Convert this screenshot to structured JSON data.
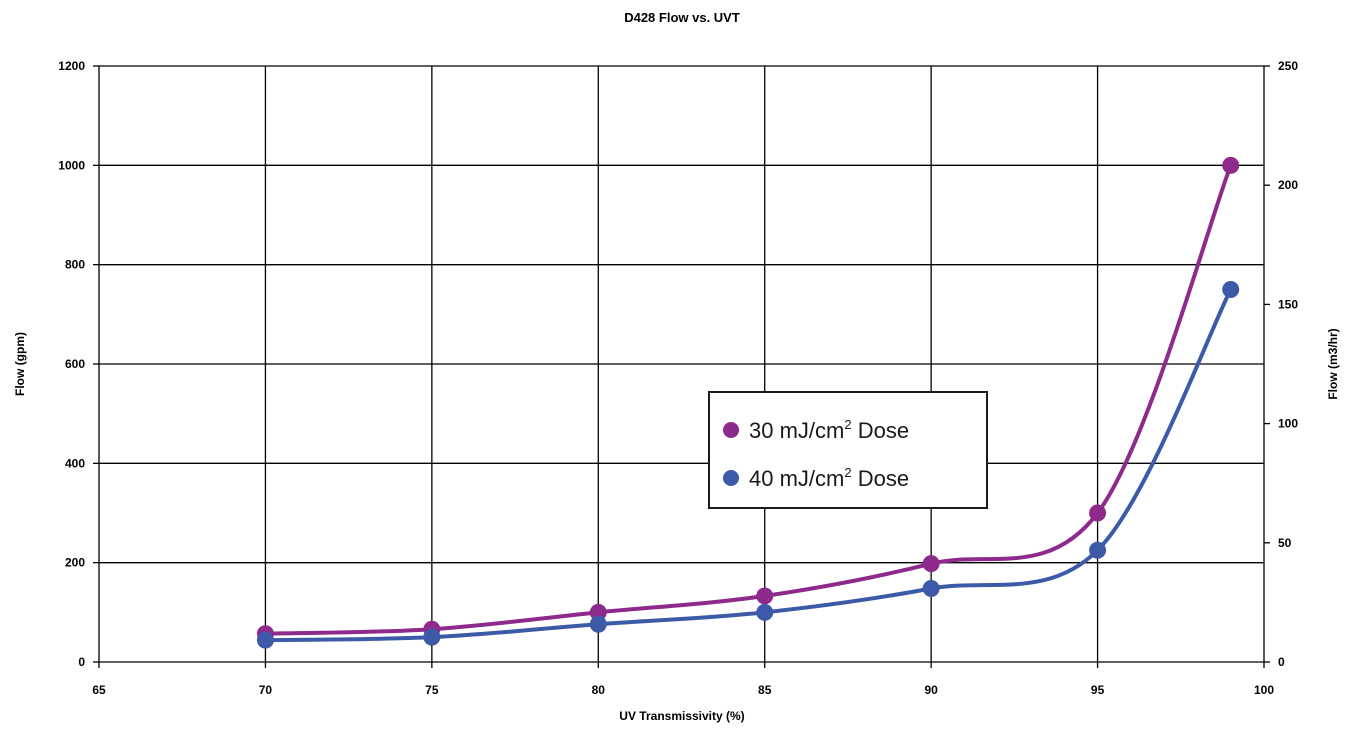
{
  "chart_data": {
    "type": "line",
    "title": "D428 Flow vs. UVT",
    "xlabel": "UV Transmissivity (%)",
    "ylabel": "Flow (gpm)",
    "y2label": "Flow (m3/hr)",
    "xlim": [
      65,
      100
    ],
    "ylim": [
      0,
      1200
    ],
    "y2lim": [
      0,
      250
    ],
    "xticks": [
      "65",
      "70",
      "75",
      "80",
      "85",
      "90",
      "95",
      "100"
    ],
    "yticks": [
      "0",
      "200",
      "400",
      "600",
      "800",
      "1000",
      "1200"
    ],
    "y2ticks": [
      "0",
      "50",
      "100",
      "150",
      "200",
      "250"
    ],
    "grid": true,
    "legend_position": "center-right",
    "smoothed": true,
    "x": [
      70,
      75,
      80,
      85,
      90,
      95,
      99
    ],
    "series": [
      {
        "legend_text": "30 mJ/cm",
        "legend_sup": "2",
        "legend_suffix": " Dose",
        "color": "#8e2a8c",
        "values": [
          57,
          66,
          100,
          133,
          198,
          300,
          1000
        ]
      },
      {
        "legend_text": "40 mJ/cm",
        "legend_sup": "2",
        "legend_suffix": " Dose",
        "color": "#3d5aa8",
        "values": [
          44,
          50,
          76,
          100,
          148,
          225,
          750
        ]
      }
    ]
  }
}
